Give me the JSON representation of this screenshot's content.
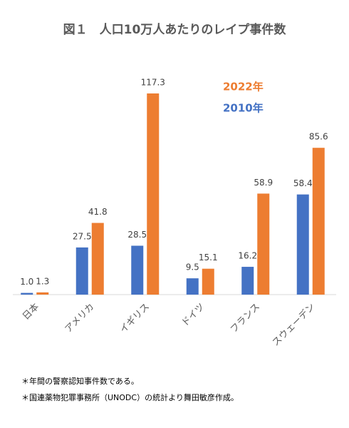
{
  "chart_data": {
    "type": "bar",
    "title": "図１　人口10万人あたりのレイプ事件数",
    "categories": [
      "日本",
      "アメリカ",
      "イギリス",
      "ドイツ",
      "フランス",
      "スウェーデン"
    ],
    "series": [
      {
        "name": "2010年",
        "color": "#4472c4",
        "values": [
          1.0,
          27.5,
          28.5,
          9.5,
          16.2,
          58.4
        ],
        "value_labels": [
          "1.0",
          "27.5",
          "28.5",
          "9.5",
          "16.2",
          "58.4"
        ]
      },
      {
        "name": "2022年",
        "color": "#ed7d31",
        "values": [
          1.3,
          41.8,
          117.3,
          15.1,
          58.9,
          85.6
        ],
        "value_labels": [
          "1.3",
          "41.8",
          "117.3",
          "15.1",
          "58.9",
          "85.6"
        ]
      }
    ],
    "notes": [
      "＊年間の警察認知事件数である。",
      "＊国連薬物犯罪事務所（UNODC）の統計より舞田敏彦作成。"
    ]
  }
}
